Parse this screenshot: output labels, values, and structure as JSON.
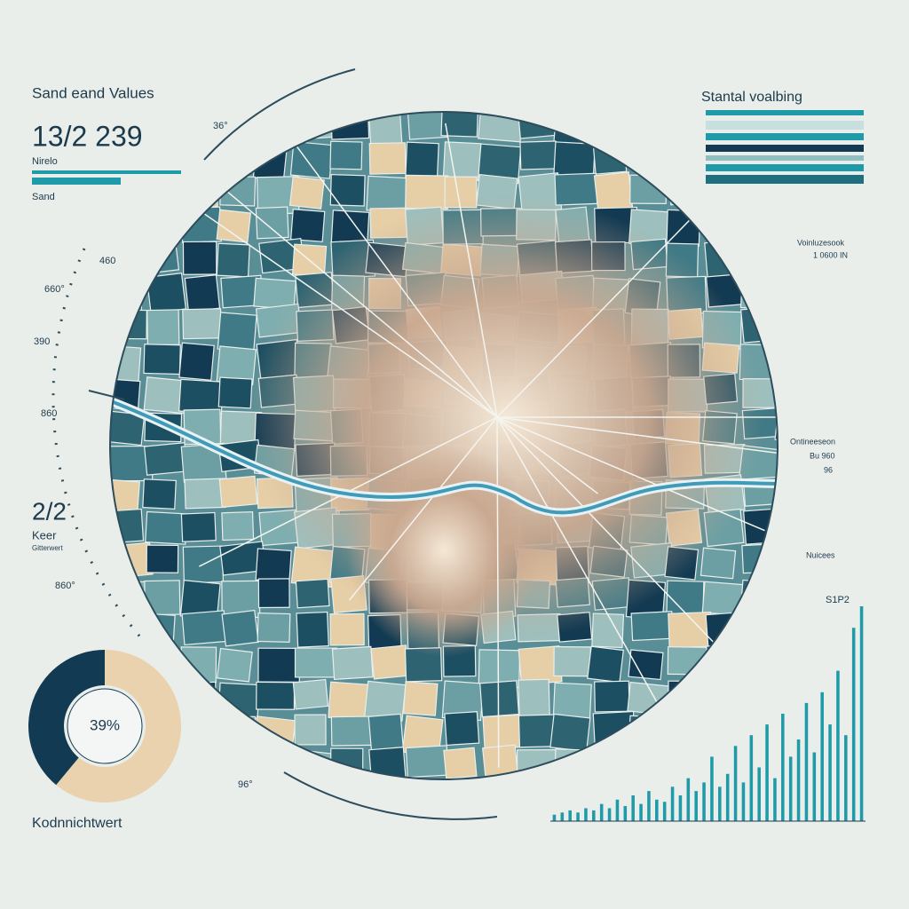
{
  "header": {
    "title": "Sand eand Values",
    "value": "13/2 239",
    "sublabel": "Nirelo",
    "caption": "Sand"
  },
  "right_panel": {
    "title": "Stantal voalbing"
  },
  "scale_labels": [
    "36°",
    "460",
    "660°",
    "390",
    "860",
    "860°",
    "96°"
  ],
  "side_stat": {
    "value": "2/2",
    "label": "Keer",
    "sublabel": "Gitterwert"
  },
  "annotations": [
    "Voinluzesook",
    "1 0600 IN",
    "Ontineeseon",
    "Bu 960",
    "96",
    "Nuicees"
  ],
  "donut": {
    "value": 39,
    "label": "39%",
    "title": "Kodnnichtwert",
    "colors": [
      "#123a52",
      "#e9d2ad"
    ]
  },
  "histogram": {
    "peak_label": "S1P2",
    "color": "#1e9aa8",
    "ylim": [
      0,
      100
    ],
    "values": [
      3,
      4,
      5,
      4,
      6,
      5,
      8,
      6,
      10,
      7,
      12,
      8,
      14,
      10,
      9,
      16,
      12,
      20,
      14,
      18,
      30,
      16,
      22,
      35,
      18,
      40,
      25,
      45,
      20,
      50,
      30,
      38,
      55,
      32,
      60,
      45,
      70,
      40,
      90,
      100
    ]
  }
}
